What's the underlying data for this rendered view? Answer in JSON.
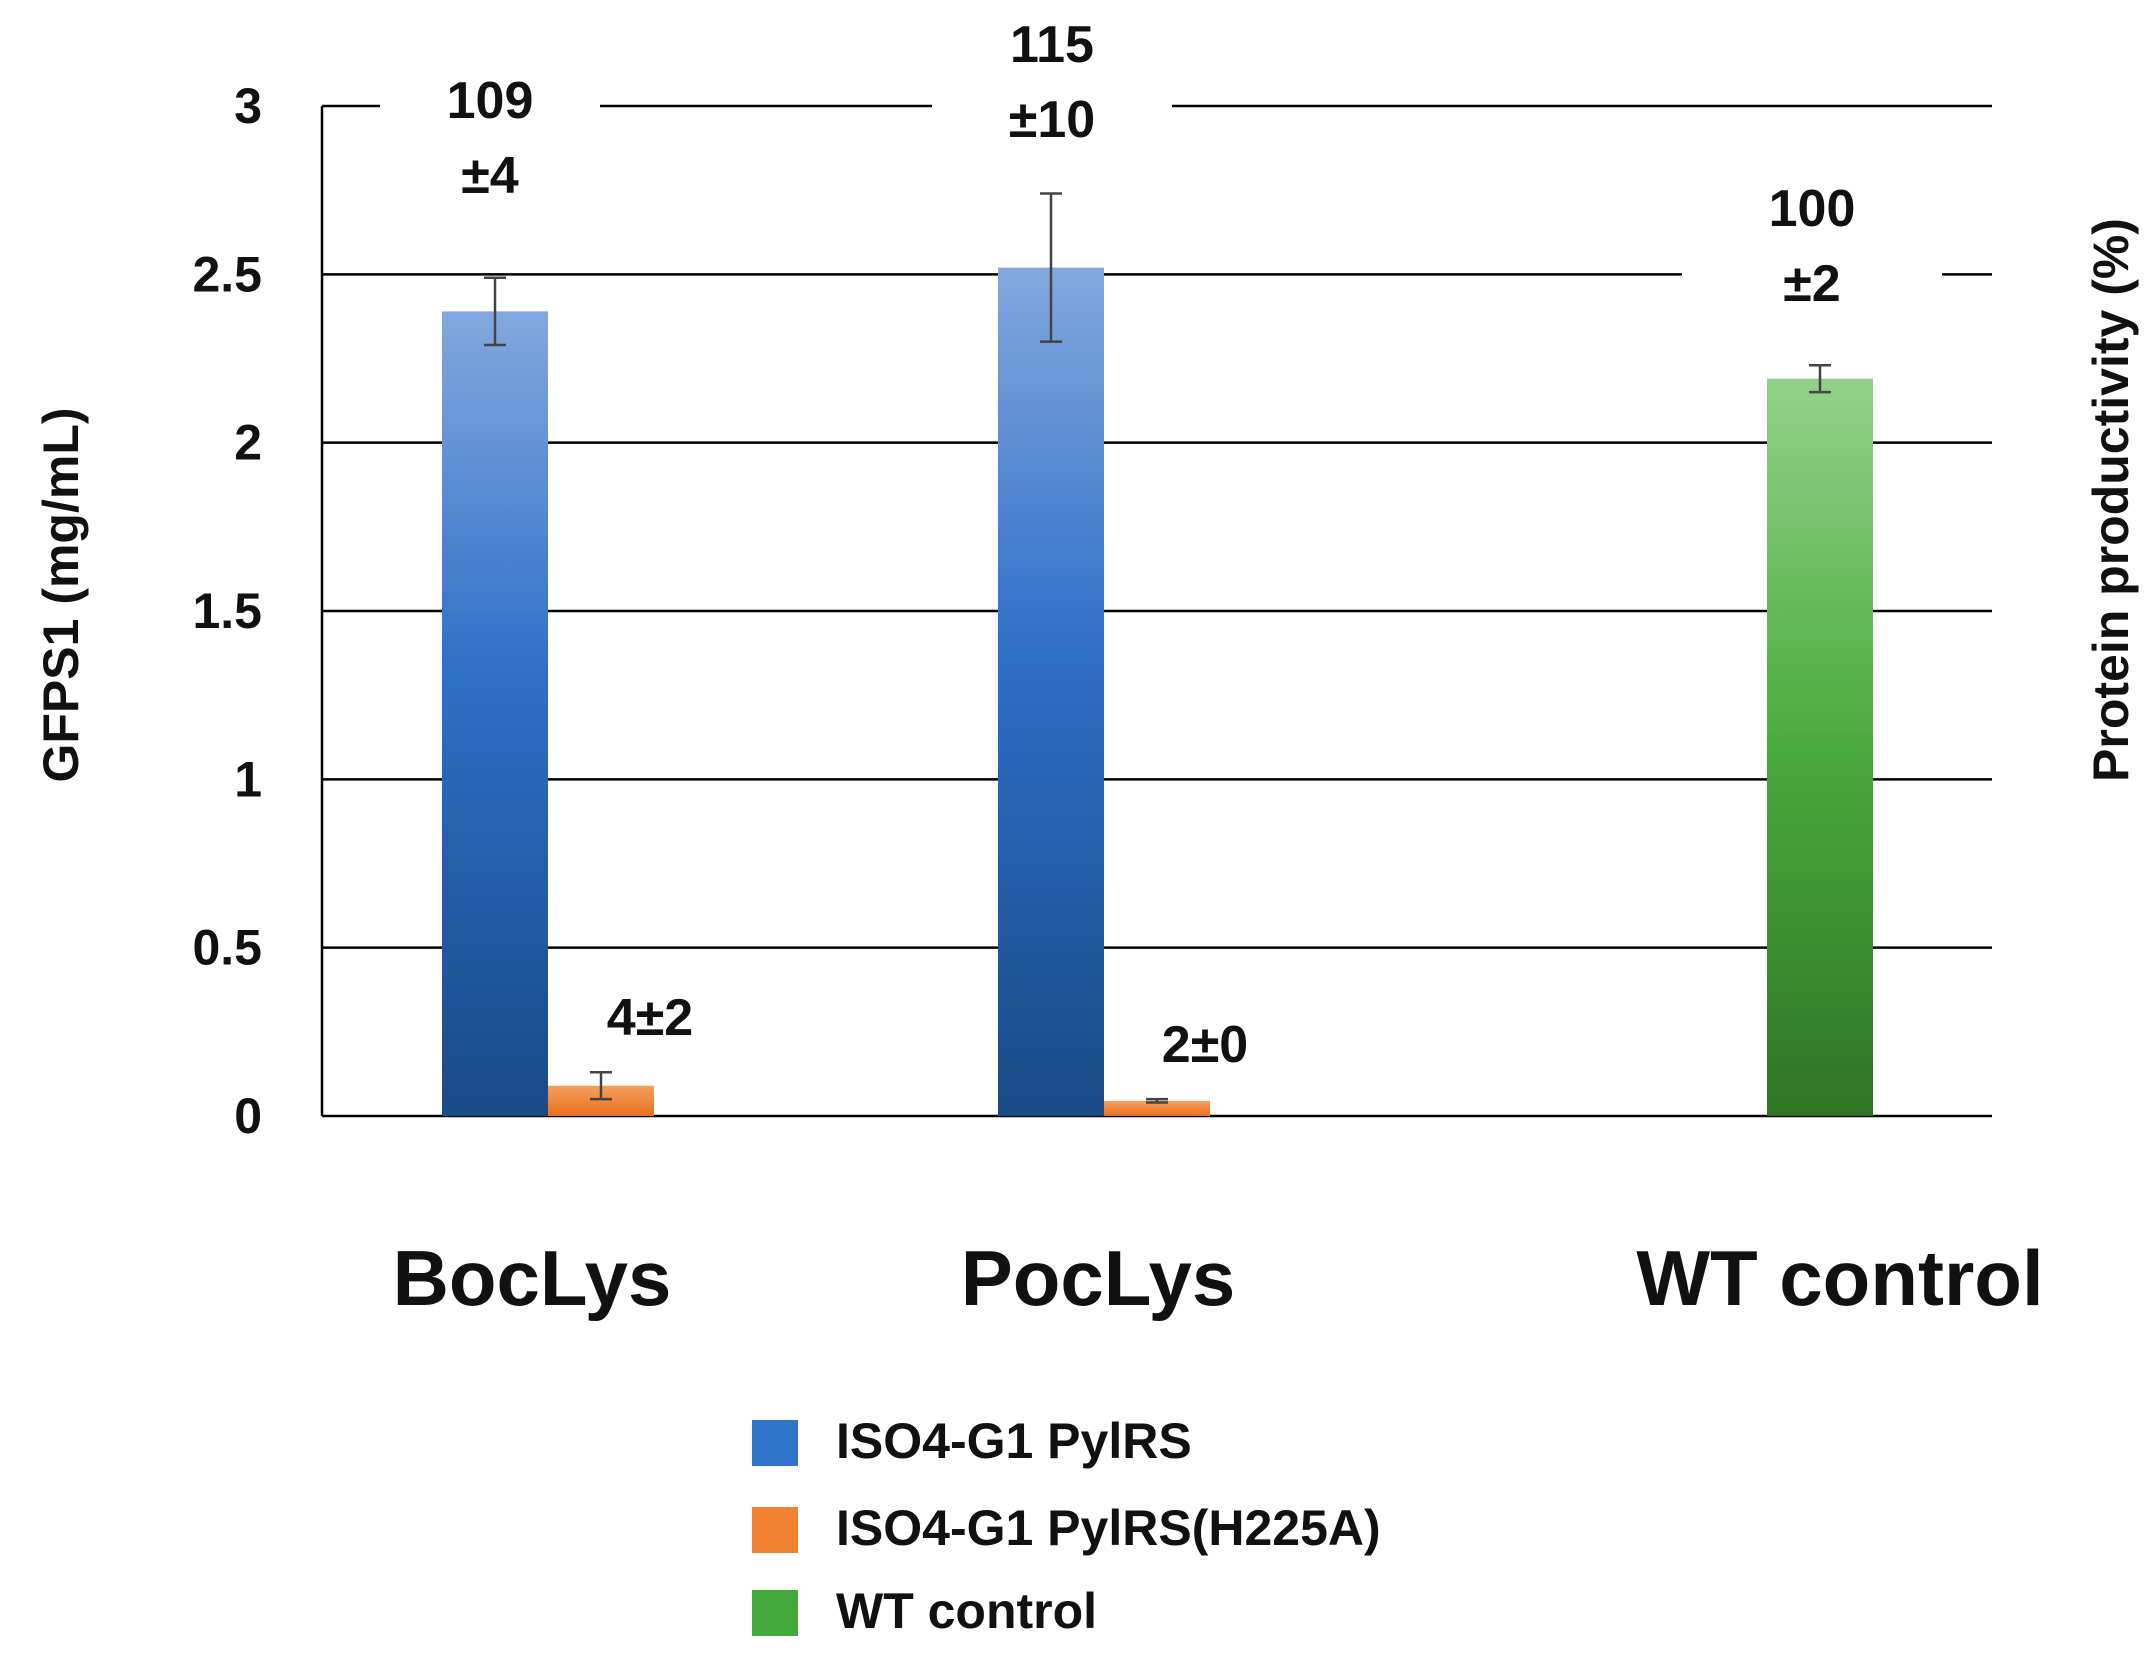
{
  "chart_data": {
    "type": "bar",
    "title": "",
    "ylabel": "GFPS1 (mg/mL)",
    "y2label": "Protein productivity (%)",
    "xlabel": "",
    "ylim": [
      0,
      3
    ],
    "yticks": [
      "0",
      "0.5",
      "1",
      "1.5",
      "2",
      "2.5",
      "3"
    ],
    "ytick_values": [
      0,
      0.5,
      1,
      1.5,
      2,
      2.5,
      3
    ],
    "grid": true,
    "categories": [
      "BocLys",
      "PocLys",
      "WT control"
    ],
    "series": [
      {
        "name": "ISO4-G1 PylRS",
        "color": "#2f74c9",
        "values": [
          2.39,
          2.52,
          null
        ],
        "errors": [
          0.1,
          0.22,
          null
        ],
        "labels": [
          [
            "109",
            "±4"
          ],
          [
            "115",
            "±10"
          ],
          null
        ]
      },
      {
        "name": "ISO4-G1 PylRS(H225A)",
        "color": "#f08232",
        "values": [
          0.09,
          0.045,
          null
        ],
        "errors": [
          0.04,
          0.005,
          null
        ],
        "labels": [
          [
            "4±2"
          ],
          [
            "2±0"
          ],
          null
        ]
      },
      {
        "name": "WT control",
        "color": "#45a83a",
        "values": [
          null,
          null,
          2.19
        ],
        "errors": [
          null,
          null,
          0.04
        ],
        "labels": [
          null,
          null,
          [
            "100",
            "±2"
          ]
        ]
      }
    ],
    "legend_position": "bottom-center"
  }
}
